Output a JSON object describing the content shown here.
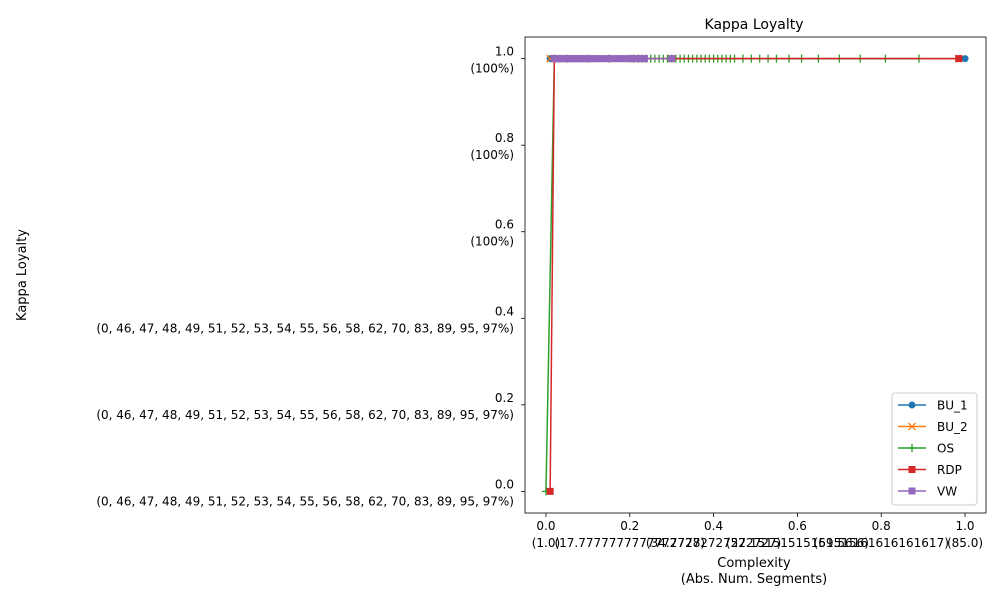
{
  "chart_data": {
    "type": "line",
    "title": "Kappa Loyalty",
    "xlabel_lines": [
      "Complexity",
      "(Abs. Num. Segments)"
    ],
    "ylabel": "Kappa Loyalty",
    "xlim": [
      -0.05,
      1.05
    ],
    "ylim": [
      -0.05,
      1.05
    ],
    "grid": false,
    "legend_position": "lower-right",
    "x_ticks": [
      {
        "value": 0.0,
        "label": "0.0"
      },
      {
        "value": 0.2,
        "label": "0.2"
      },
      {
        "value": 0.4,
        "label": "0.4"
      },
      {
        "value": 0.6,
        "label": "0.6"
      },
      {
        "value": 0.8,
        "label": "0.8"
      },
      {
        "value": 1.0,
        "label": "1.0"
      }
    ],
    "x_secondary_labels": [
      {
        "value": 0.0,
        "label": "(1.0)"
      },
      {
        "value": 0.2,
        "label": "(17.7777777777777778)"
      },
      {
        "value": 0.4,
        "label": "(34.27272727272727)"
      },
      {
        "value": 0.6,
        "label": "(52.151515151515156)"
      },
      {
        "value": 0.8,
        "label": "(69.56161616161617)"
      },
      {
        "value": 1.0,
        "label": "(85.0)"
      }
    ],
    "y_ticks": [
      {
        "value": 0.0,
        "label": "0.0",
        "sub": "(0, 46, 47, 48, 49, 51, 52, 53, 54, 55, 56, 58, 62, 70, 83, 89, 95, 97%)"
      },
      {
        "value": 0.2,
        "label": "0.2",
        "sub": "(0, 46, 47, 48, 49, 51, 52, 53, 54, 55, 56, 58, 62, 70, 83, 89, 95, 97%)"
      },
      {
        "value": 0.4,
        "label": "0.4",
        "sub": "(0, 46, 47, 48, 49, 51, 52, 53, 54, 55, 56, 58, 62, 70, 83, 89, 95, 97%)"
      },
      {
        "value": 0.6,
        "label": "0.6",
        "sub": "(100%)"
      },
      {
        "value": 0.8,
        "label": "0.8",
        "sub": "(100%)"
      },
      {
        "value": 1.0,
        "label": "1.0",
        "sub": "(100%)"
      }
    ],
    "series": [
      {
        "name": "BU_1",
        "color": "#1f77b4",
        "marker": "circle",
        "x": [
          0.01,
          0.02,
          0.03,
          0.04,
          0.05,
          0.06,
          0.08,
          0.1,
          0.12,
          0.15,
          0.18,
          0.2,
          0.23,
          0.3,
          0.985,
          1.0
        ],
        "y": [
          1,
          1,
          1,
          1,
          1,
          1,
          1,
          1,
          1,
          1,
          1,
          1,
          1,
          1,
          1,
          1
        ]
      },
      {
        "name": "BU_2",
        "color": "#ff7f0e",
        "marker": "x",
        "x": [
          0.01,
          0.02,
          0.03,
          0.04,
          0.06,
          0.08,
          0.1,
          0.13,
          0.16,
          0.2,
          0.23,
          0.3,
          0.985
        ],
        "y": [
          1,
          1,
          1,
          1,
          1,
          1,
          1,
          1,
          1,
          1,
          1,
          1,
          1
        ]
      },
      {
        "name": "OS",
        "color": "#2ca02c",
        "marker": "plus",
        "x": [
          0.0,
          0.02,
          0.05,
          0.1,
          0.15,
          0.2,
          0.21,
          0.22,
          0.23,
          0.24,
          0.25,
          0.26,
          0.27,
          0.28,
          0.29,
          0.3,
          0.31,
          0.32,
          0.33,
          0.34,
          0.35,
          0.36,
          0.37,
          0.38,
          0.39,
          0.4,
          0.41,
          0.42,
          0.43,
          0.44,
          0.45,
          0.47,
          0.49,
          0.51,
          0.53,
          0.55,
          0.58,
          0.61,
          0.65,
          0.7,
          0.75,
          0.81,
          0.89
        ],
        "y": [
          0,
          1,
          1,
          1,
          1,
          1,
          1,
          1,
          1,
          1,
          1,
          1,
          1,
          1,
          1,
          1,
          1,
          1,
          1,
          1,
          1,
          1,
          1,
          1,
          1,
          1,
          1,
          1,
          1,
          1,
          1,
          1,
          1,
          1,
          1,
          1,
          1,
          1,
          1,
          1,
          1,
          1,
          1
        ]
      },
      {
        "name": "RDP",
        "color": "#d62728",
        "marker": "square",
        "x": [
          0.01,
          0.02,
          0.985
        ],
        "y": [
          0,
          1,
          1
        ]
      },
      {
        "name": "VW",
        "color": "#9467bd",
        "marker": "square",
        "x": [
          0.02,
          0.025,
          0.03,
          0.035,
          0.04,
          0.045,
          0.05,
          0.055,
          0.06,
          0.065,
          0.07,
          0.075,
          0.08,
          0.085,
          0.09,
          0.095,
          0.1,
          0.11,
          0.12,
          0.13,
          0.14,
          0.15,
          0.16,
          0.17,
          0.18,
          0.19,
          0.2,
          0.21,
          0.22,
          0.23,
          0.235,
          0.3
        ],
        "y": [
          1,
          1,
          1,
          1,
          1,
          1,
          1,
          1,
          1,
          1,
          1,
          1,
          1,
          1,
          1,
          1,
          1,
          1,
          1,
          1,
          1,
          1,
          1,
          1,
          1,
          1,
          1,
          1,
          1,
          1,
          1,
          1
        ]
      }
    ]
  }
}
